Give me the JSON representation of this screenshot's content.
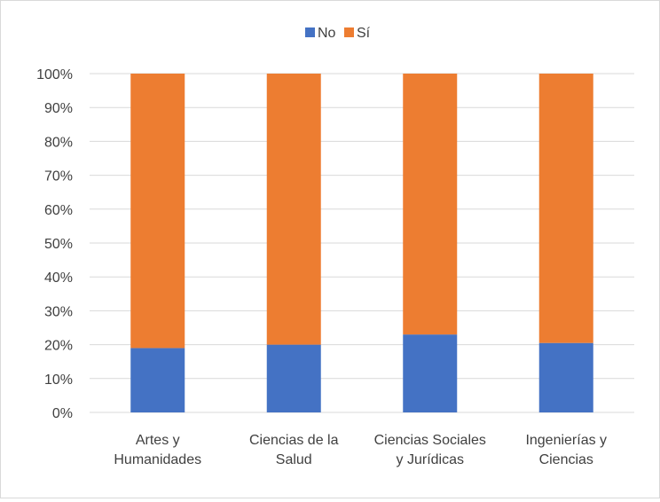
{
  "chart_data": {
    "type": "bar",
    "stacked": true,
    "percent_stacked": true,
    "categories": [
      [
        "Artes y",
        "Humanidades"
      ],
      [
        "Ciencias de la",
        "Salud"
      ],
      [
        "Ciencias Sociales",
        "y Jurídicas"
      ],
      [
        "Ingenierías y",
        "Ciencias"
      ]
    ],
    "series": [
      {
        "name": "No",
        "color": "#4472c4",
        "values": [
          19,
          20,
          23,
          20.5
        ]
      },
      {
        "name": "Sí",
        "color": "#ed7d31",
        "values": [
          81,
          80,
          77,
          79.5
        ]
      }
    ],
    "ylim": [
      0,
      100
    ],
    "yticks": [
      "0%",
      "10%",
      "20%",
      "30%",
      "40%",
      "50%",
      "60%",
      "70%",
      "80%",
      "90%",
      "100%"
    ],
    "grid": true,
    "legend_position": "top"
  }
}
